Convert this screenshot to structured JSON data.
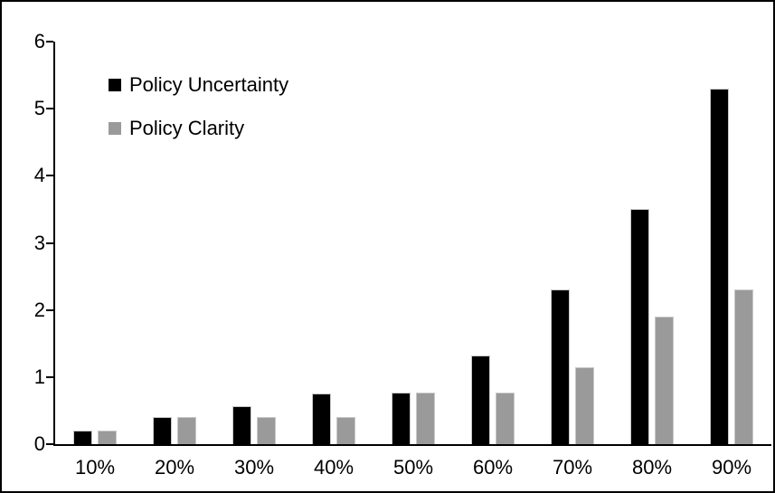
{
  "chart_data": {
    "type": "bar",
    "title": "",
    "xlabel": "",
    "ylabel": "",
    "categories": [
      "10%",
      "20%",
      "30%",
      "40%",
      "50%",
      "60%",
      "70%",
      "80%",
      "90%"
    ],
    "series": [
      {
        "name": "Policy Uncertainty",
        "color": "#000000",
        "values": [
          0.2,
          0.4,
          0.57,
          0.76,
          0.77,
          1.32,
          2.3,
          3.5,
          5.3
        ]
      },
      {
        "name": "Policy Clarity",
        "color": "#9a9a9a",
        "values": [
          0.2,
          0.4,
          0.4,
          0.4,
          0.77,
          0.77,
          1.15,
          1.9,
          2.3
        ]
      }
    ],
    "ylim": [
      0,
      6
    ],
    "yticks": [
      0,
      1,
      2,
      3,
      4,
      5,
      6
    ],
    "grid": false,
    "legend_position": "top-left-inside",
    "axis_color": "#000000",
    "background_color": "#ffffff"
  }
}
